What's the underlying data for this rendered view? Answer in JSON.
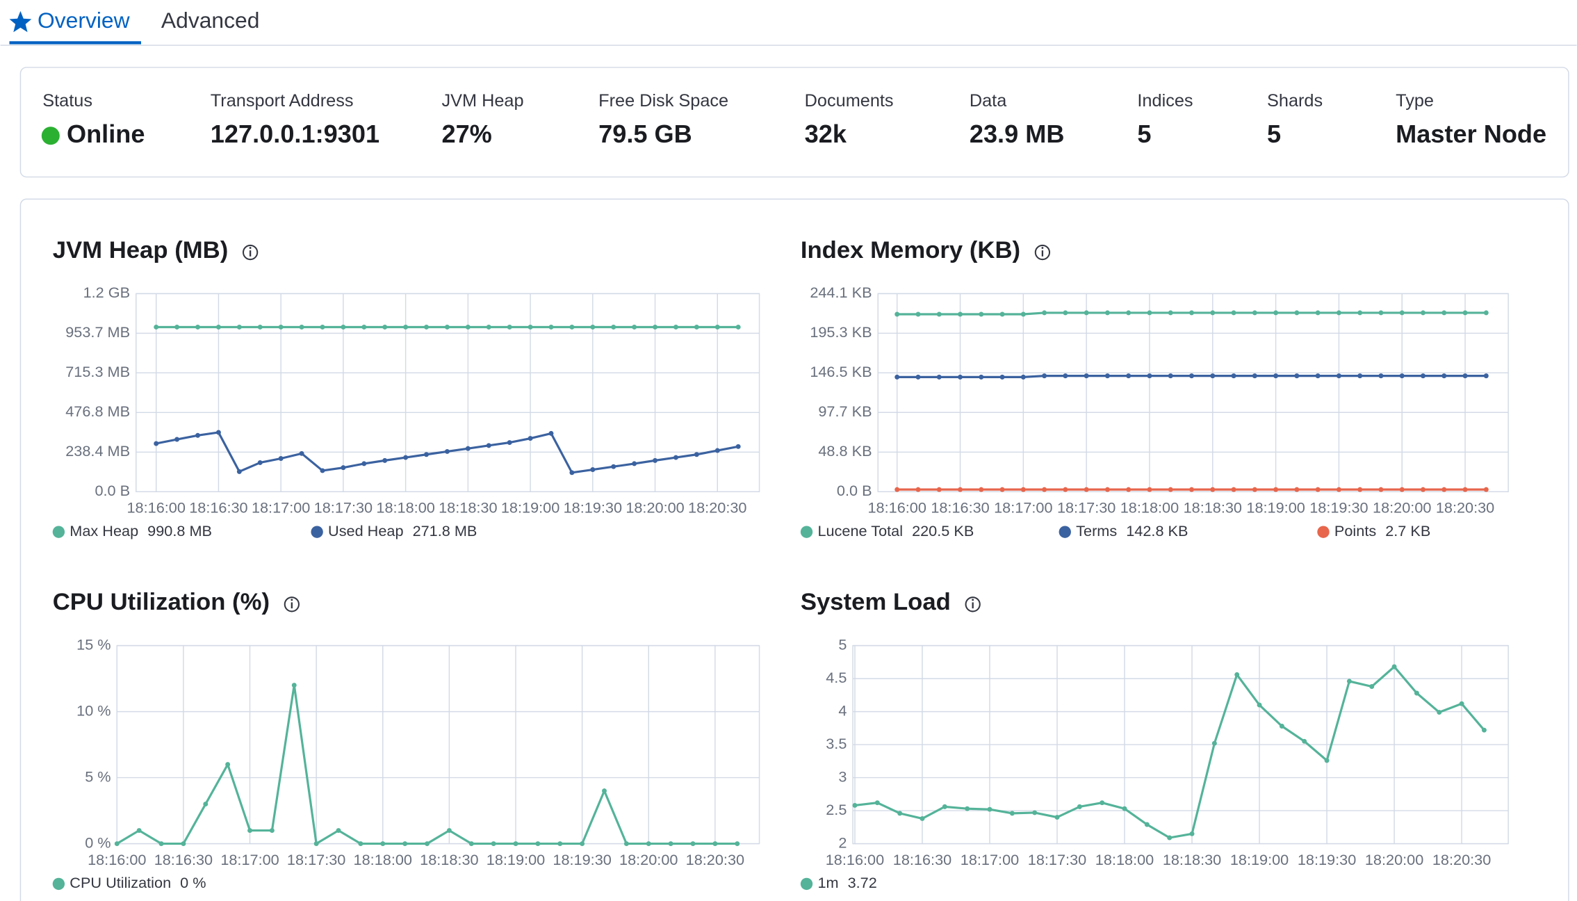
{
  "tabs": [
    "Overview",
    "Advanced"
  ],
  "summary": [
    {
      "label": "Status",
      "value": "Online"
    },
    {
      "label": "Transport Address",
      "value": "127.0.0.1:9301"
    },
    {
      "label": "JVM Heap",
      "value": "27%"
    },
    {
      "label": "Free Disk Space",
      "value": "79.5 GB"
    },
    {
      "label": "Documents",
      "value": "32k"
    },
    {
      "label": "Data",
      "value": "23.9 MB"
    },
    {
      "label": "Indices",
      "value": "5"
    },
    {
      "label": "Shards",
      "value": "5"
    },
    {
      "label": "Type",
      "value": "Master Node"
    }
  ],
  "chart_data": [
    {
      "type": "line",
      "title": "JVM Heap (MB)",
      "x": [
        "18:16:00",
        "18:16:10",
        "18:16:20",
        "18:16:30",
        "18:16:40",
        "18:16:50",
        "18:17:00",
        "18:17:10",
        "18:17:20",
        "18:17:30",
        "18:17:40",
        "18:17:50",
        "18:18:00",
        "18:18:10",
        "18:18:20",
        "18:18:30",
        "18:18:40",
        "18:18:50",
        "18:19:00",
        "18:19:10",
        "18:19:20",
        "18:19:30",
        "18:19:40",
        "18:19:50",
        "18:20:00",
        "18:20:10",
        "18:20:20",
        "18:20:30",
        "18:20:40"
      ],
      "xticks": [
        "18:16:00",
        "18:16:30",
        "18:17:00",
        "18:17:30",
        "18:18:00",
        "18:18:30",
        "18:19:00",
        "18:19:30",
        "18:20:00",
        "18:20:30"
      ],
      "ylim": [
        0,
        1192.1
      ],
      "yticks": [
        {
          "value": 0,
          "label": "0.0 B"
        },
        {
          "value": 238.4,
          "label": "238.4 MB"
        },
        {
          "value": 476.8,
          "label": "476.8 MB"
        },
        {
          "value": 715.3,
          "label": "715.3 MB"
        },
        {
          "value": 953.7,
          "label": "953.7 MB"
        },
        {
          "value": 1192.1,
          "label": "1.2 GB"
        }
      ],
      "grid": true,
      "series": [
        {
          "name": "Max Heap",
          "color": "#54b399",
          "legend_value": "990.8 MB",
          "values": [
            990.8,
            990.8,
            990.8,
            990.8,
            990.8,
            990.8,
            990.8,
            990.8,
            990.8,
            990.8,
            990.8,
            990.8,
            990.8,
            990.8,
            990.8,
            990.8,
            990.8,
            990.8,
            990.8,
            990.8,
            990.8,
            990.8,
            990.8,
            990.8,
            990.8,
            990.8,
            990.8,
            990.8,
            990.8
          ]
        },
        {
          "name": "Used Heap",
          "color": "#3b62a0",
          "legend_value": "271.8 MB",
          "values": [
            290,
            315,
            339,
            357,
            121,
            175,
            200,
            230,
            127,
            145,
            169,
            188,
            206,
            224,
            242,
            260,
            278,
            296,
            321,
            351,
            115,
            133,
            151,
            169,
            188,
            206,
            224,
            248,
            271.8
          ]
        }
      ]
    },
    {
      "type": "line",
      "title": "Index Memory (KB)",
      "x": [
        "18:16:00",
        "18:16:10",
        "18:16:20",
        "18:16:30",
        "18:16:40",
        "18:16:50",
        "18:17:00",
        "18:17:10",
        "18:17:20",
        "18:17:30",
        "18:17:40",
        "18:17:50",
        "18:18:00",
        "18:18:10",
        "18:18:20",
        "18:18:30",
        "18:18:40",
        "18:18:50",
        "18:19:00",
        "18:19:10",
        "18:19:20",
        "18:19:30",
        "18:19:40",
        "18:19:50",
        "18:20:00",
        "18:20:10",
        "18:20:20",
        "18:20:30",
        "18:20:40"
      ],
      "xticks": [
        "18:16:00",
        "18:16:30",
        "18:17:00",
        "18:17:30",
        "18:18:00",
        "18:18:30",
        "18:19:00",
        "18:19:30",
        "18:20:00",
        "18:20:30"
      ],
      "ylim": [
        0,
        244.1
      ],
      "yticks": [
        {
          "value": 0,
          "label": "0.0 B"
        },
        {
          "value": 48.8,
          "label": "48.8 KB"
        },
        {
          "value": 97.7,
          "label": "97.7 KB"
        },
        {
          "value": 146.5,
          "label": "146.5 KB"
        },
        {
          "value": 195.3,
          "label": "195.3 KB"
        },
        {
          "value": 244.1,
          "label": "244.1 KB"
        }
      ],
      "grid": true,
      "series": [
        {
          "name": "Lucene Total",
          "color": "#54b399",
          "legend_value": "220.5 KB",
          "values": [
            218.7,
            218.7,
            218.7,
            218.7,
            218.7,
            218.7,
            218.7,
            220.5,
            220.5,
            220.5,
            220.5,
            220.5,
            220.5,
            220.5,
            220.5,
            220.5,
            220.5,
            220.5,
            220.5,
            220.5,
            220.5,
            220.5,
            220.5,
            220.5,
            220.5,
            220.5,
            220.5,
            220.5,
            220.5
          ]
        },
        {
          "name": "Terms",
          "color": "#3b62a0",
          "legend_value": "142.8 KB",
          "values": [
            141.3,
            141.3,
            141.3,
            141.3,
            141.3,
            141.3,
            141.3,
            142.8,
            142.8,
            142.8,
            142.8,
            142.8,
            142.8,
            142.8,
            142.8,
            142.8,
            142.8,
            142.8,
            142.8,
            142.8,
            142.8,
            142.8,
            142.8,
            142.8,
            142.8,
            142.8,
            142.8,
            142.8,
            142.8
          ]
        },
        {
          "name": "Points",
          "color": "#e7664c",
          "legend_value": "2.7 KB",
          "values": [
            2.7,
            2.7,
            2.7,
            2.7,
            2.7,
            2.7,
            2.7,
            2.7,
            2.7,
            2.7,
            2.7,
            2.7,
            2.7,
            2.7,
            2.7,
            2.7,
            2.7,
            2.7,
            2.7,
            2.7,
            2.7,
            2.7,
            2.7,
            2.7,
            2.7,
            2.7,
            2.7,
            2.7,
            2.7
          ]
        }
      ]
    },
    {
      "type": "line",
      "title": "CPU Utilization (%)",
      "x": [
        "18:16:00",
        "18:16:10",
        "18:16:20",
        "18:16:30",
        "18:16:40",
        "18:16:50",
        "18:17:00",
        "18:17:10",
        "18:17:20",
        "18:17:30",
        "18:17:40",
        "18:17:50",
        "18:18:00",
        "18:18:10",
        "18:18:20",
        "18:18:30",
        "18:18:40",
        "18:18:50",
        "18:19:00",
        "18:19:10",
        "18:19:20",
        "18:19:30",
        "18:19:40",
        "18:19:50",
        "18:20:00",
        "18:20:10",
        "18:20:20",
        "18:20:30",
        "18:20:40"
      ],
      "xticks": [
        "18:16:00",
        "18:16:30",
        "18:17:00",
        "18:17:30",
        "18:18:00",
        "18:18:30",
        "18:19:00",
        "18:19:30",
        "18:20:00",
        "18:20:30"
      ],
      "ylim": [
        0,
        15
      ],
      "yticks": [
        {
          "value": 0,
          "label": "0 %"
        },
        {
          "value": 5,
          "label": "5 %"
        },
        {
          "value": 10,
          "label": "10 %"
        },
        {
          "value": 15,
          "label": "15 %"
        }
      ],
      "grid": true,
      "series": [
        {
          "name": "CPU Utilization",
          "color": "#54b399",
          "legend_value": "0 %",
          "values": [
            0,
            1,
            0,
            0,
            3,
            6,
            1,
            1,
            12,
            0,
            1,
            0,
            0,
            0,
            0,
            1,
            0,
            0,
            0,
            0,
            0,
            0,
            4,
            0,
            0,
            0,
            0,
            0,
            0
          ]
        }
      ]
    },
    {
      "type": "line",
      "title": "System Load",
      "x": [
        "18:16:00",
        "18:16:10",
        "18:16:20",
        "18:16:30",
        "18:16:40",
        "18:16:50",
        "18:17:00",
        "18:17:10",
        "18:17:20",
        "18:17:30",
        "18:17:40",
        "18:17:50",
        "18:18:00",
        "18:18:10",
        "18:18:20",
        "18:18:30",
        "18:18:40",
        "18:18:50",
        "18:19:00",
        "18:19:10",
        "18:19:20",
        "18:19:30",
        "18:19:40",
        "18:19:50",
        "18:20:00",
        "18:20:10",
        "18:20:20",
        "18:20:30",
        "18:20:40"
      ],
      "xticks": [
        "18:16:00",
        "18:16:30",
        "18:17:00",
        "18:17:30",
        "18:18:00",
        "18:18:30",
        "18:19:00",
        "18:19:30",
        "18:20:00",
        "18:20:30"
      ],
      "ylim": [
        2,
        5
      ],
      "yticks": [
        2,
        2.5,
        3,
        3.5,
        4,
        4.5,
        5
      ],
      "grid": true,
      "series": [
        {
          "name": "1m",
          "color": "#54b399",
          "legend_value": "3.72",
          "values": [
            2.58,
            2.62,
            2.46,
            2.38,
            2.56,
            2.53,
            2.52,
            2.46,
            2.47,
            2.4,
            2.56,
            2.62,
            2.53,
            2.29,
            2.09,
            2.15,
            3.52,
            4.56,
            4.1,
            3.78,
            3.55,
            3.26,
            4.46,
            4.38,
            4.68,
            4.28,
            3.99,
            4.12,
            3.72
          ]
        }
      ]
    }
  ]
}
